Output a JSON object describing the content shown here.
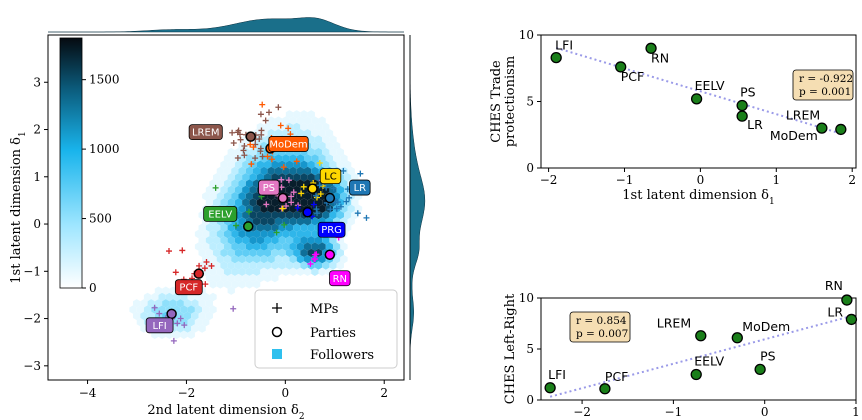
{
  "chart_data": [
    {
      "type": "scatter",
      "xlabel": "2nd latent dimension δ2",
      "ylabel": "1st latent dimension δ1",
      "xlim": [
        -4.8,
        2.4
      ],
      "ylim": [
        -3.3,
        4.0
      ],
      "xticks": [
        -4,
        -2,
        0,
        2
      ],
      "yticks": [
        -3,
        -2,
        -1,
        0,
        1,
        2,
        3
      ],
      "grid": false,
      "colorbar": {
        "ticks": [
          0,
          500,
          1000,
          1500
        ],
        "range": [
          0,
          1800
        ],
        "colormap": "white-to-cyan-to-black"
      },
      "marginal_histograms": {
        "top": "density of followers along δ2",
        "right": "density of followers along δ1"
      },
      "legend": {
        "placement": "lower-right",
        "entries": [
          "MPs",
          "Parties",
          "Followers"
        ]
      },
      "parties": [
        {
          "name": "LFI",
          "x": -2.3,
          "y": -1.9,
          "color": "#9467bd"
        },
        {
          "name": "PCF",
          "x": -1.75,
          "y": -1.05,
          "color": "#d62728"
        },
        {
          "name": "EELV",
          "x": -0.75,
          "y": -0.05,
          "color": "#2ca02c"
        },
        {
          "name": "LREM",
          "x": -0.7,
          "y": 1.85,
          "color": "#8c564b"
        },
        {
          "name": "MoDem",
          "x": -0.3,
          "y": 1.6,
          "color": "#ff5a00"
        },
        {
          "name": "PS",
          "x": -0.05,
          "y": 0.55,
          "color": "#e377c2"
        },
        {
          "name": "LC",
          "x": 0.55,
          "y": 0.75,
          "color": "#ffd700"
        },
        {
          "name": "LR",
          "x": 0.9,
          "y": 0.55,
          "color": "#1f77b4"
        },
        {
          "name": "PRG",
          "x": 0.45,
          "y": 0.25,
          "color": "#0000ff"
        },
        {
          "name": "RN",
          "x": 0.9,
          "y": -0.65,
          "color": "#ff00ff"
        }
      ]
    },
    {
      "type": "scatter",
      "xlabel": "1st latent dimension δ1",
      "ylabel": "CHES Trade protectionism",
      "xlim": [
        -2.1,
        2.05
      ],
      "ylim": [
        0,
        10
      ],
      "xticks": [
        -2,
        -1,
        0,
        1,
        2
      ],
      "yticks": [
        0,
        5,
        10
      ],
      "annotation": [
        "r = -0.922",
        "p = 0.001"
      ],
      "points": [
        {
          "label": "LFI",
          "x": -1.9,
          "y": 8.3
        },
        {
          "label": "RN",
          "x": -0.65,
          "y": 9.0
        },
        {
          "label": "PCF",
          "x": -1.05,
          "y": 7.6
        },
        {
          "label": "EELV",
          "x": -0.05,
          "y": 5.2
        },
        {
          "label": "PS",
          "x": 0.55,
          "y": 4.7
        },
        {
          "label": "LR",
          "x": 0.55,
          "y": 3.9
        },
        {
          "label": "LREM",
          "x": 1.85,
          "y": 2.9
        },
        {
          "label": "MoDem",
          "x": 1.6,
          "y": 3.0
        }
      ]
    },
    {
      "type": "scatter",
      "xlabel": "2nd latent dimension δ2",
      "ylabel": "CHES Left-Right",
      "xlim": [
        -2.45,
        1.0
      ],
      "ylim": [
        0,
        10
      ],
      "xticks": [
        -2,
        -1,
        0,
        1
      ],
      "yticks": [
        0,
        5,
        10
      ],
      "annotation": [
        "r = 0.854",
        "p = 0.007"
      ],
      "points": [
        {
          "label": "LFI",
          "x": -2.35,
          "y": 1.2
        },
        {
          "label": "PCF",
          "x": -1.75,
          "y": 1.1
        },
        {
          "label": "EELV",
          "x": -0.75,
          "y": 2.5
        },
        {
          "label": "LREM",
          "x": -0.7,
          "y": 6.3
        },
        {
          "label": "MoDem",
          "x": -0.3,
          "y": 6.1
        },
        {
          "label": "PS",
          "x": -0.05,
          "y": 3.0
        },
        {
          "label": "RN",
          "x": 0.9,
          "y": 9.8
        },
        {
          "label": "LR",
          "x": 0.95,
          "y": 7.9
        }
      ]
    }
  ]
}
